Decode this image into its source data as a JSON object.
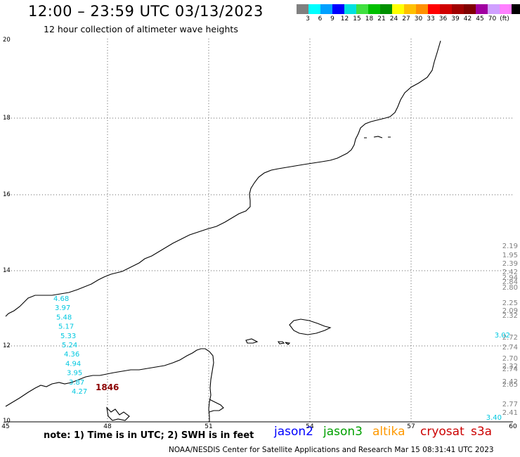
{
  "header": {
    "title": "12:00 – 23:59 UTC 03/13/2023",
    "subtitle": "12 hour collection of altimeter wave heights"
  },
  "legend": {
    "colors": [
      "#808080",
      "#00ffff",
      "#00a0ff",
      "#0000ff",
      "#00e0e0",
      "#40e040",
      "#00c000",
      "#009000",
      "#ffff00",
      "#ffc000",
      "#ff9000",
      "#ff0000",
      "#d00000",
      "#a00000",
      "#800000",
      "#a000a0",
      "#d0a0ff",
      "#ff80ff",
      "#000000"
    ],
    "labels": [
      "3",
      "6",
      "9",
      "12",
      "15",
      "18",
      "21",
      "24",
      "27",
      "30",
      "33",
      "36",
      "39",
      "42",
      "45",
      "70",
      "(ft)"
    ]
  },
  "axes": {
    "x_ticks": [
      "45",
      "48",
      "51",
      "54",
      "57",
      "60"
    ],
    "y_ticks": [
      "20",
      "18",
      "16",
      "14",
      "12",
      "10"
    ]
  },
  "observations": {
    "cyan_track": [
      "4.68",
      "3.97",
      "5.48",
      "5.17",
      "5.33",
      "5.24",
      "4.36",
      "4.94",
      "3.95",
      "3.87",
      "4.27"
    ],
    "red_label": "1846",
    "gray_track": [
      "2.19",
      "1.95",
      "2.39",
      "2.42",
      "2.94",
      "2.84",
      "2.80",
      "2.25",
      "2.09",
      "2.32",
      "2.72",
      "2.74",
      "2.70",
      "2.32",
      "2.74",
      "2.42",
      "2.65",
      "2.77",
      "2.41"
    ],
    "cyan_right": [
      "3.02",
      "3.40"
    ]
  },
  "footer": {
    "note": "note:  1) Time is in UTC;  2) SWH is in feet",
    "satellites": [
      {
        "name": "jason2",
        "color": "#0000ff"
      },
      {
        "name": "jason3",
        "color": "#00a000"
      },
      {
        "name": "altika",
        "color": "#ff9900"
      },
      {
        "name": "cryosat",
        "color": "#cc0000"
      },
      {
        "name": "s3a",
        "color": "#cc0000"
      }
    ],
    "credit": "NOAA/NESDIS Center for Satellite Applications and Research    Mar 15 08:31:41 UTC 2023"
  }
}
